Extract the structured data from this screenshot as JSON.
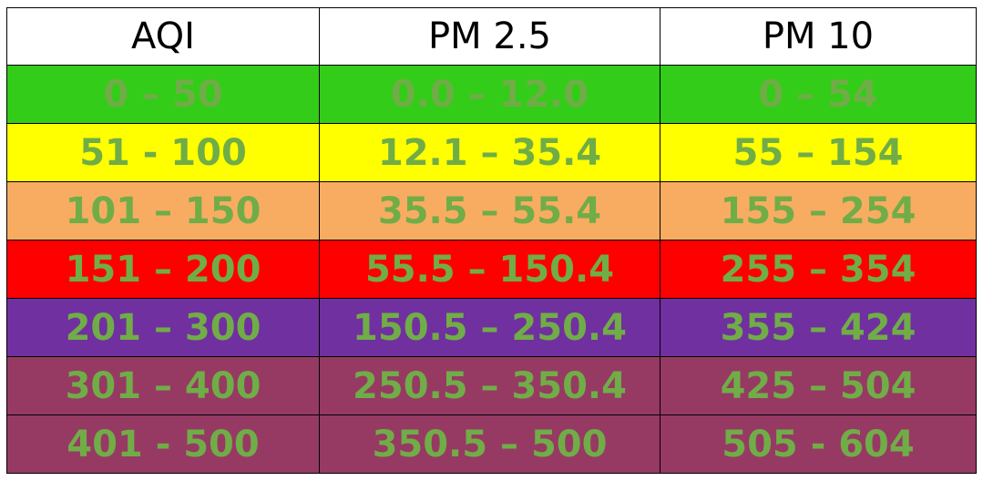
{
  "table": {
    "header": [
      "AQI",
      "PM 2.5",
      "PM 10"
    ],
    "rows": [
      [
        "0 – 50",
        "0.0 – 12.0",
        "0 – 54"
      ],
      [
        "51 - 100",
        "12.1 – 35.4",
        "55 – 154"
      ],
      [
        "101 – 150",
        "35.5 – 55.4",
        "155 – 254"
      ],
      [
        "151 – 200",
        "55.5 – 150.4",
        "255 – 354"
      ],
      [
        "201 – 300",
        "150.5 – 250.4",
        "355 – 424"
      ],
      [
        "301 – 400",
        "250.5 – 350.4",
        "425 – 504"
      ],
      [
        "401 - 500",
        "350.5 – 500",
        "505 - 604"
      ]
    ],
    "row_colors": [
      "#33cc19",
      "#ffff00",
      "#f8ac62",
      "#ff0000",
      "#7030a0",
      "#963a64",
      "#963a64"
    ],
    "text_color": "#70ad47"
  }
}
